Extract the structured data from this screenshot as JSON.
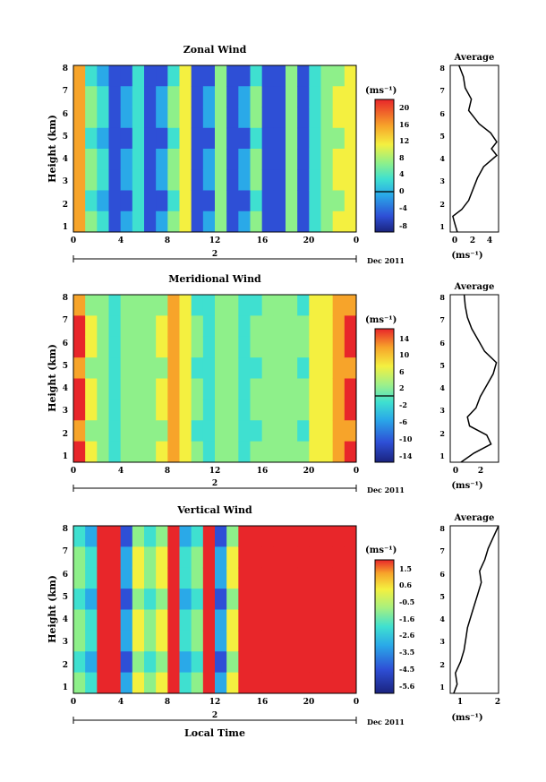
{
  "panels": [
    {
      "id": "zonal",
      "title": "Zonal Wind",
      "ylabel": "Height (km)",
      "yticks": [
        "1",
        "2",
        "3",
        "4",
        "5",
        "6",
        "7",
        "8"
      ],
      "xticks": [
        "0",
        "4",
        "8",
        "12",
        "16",
        "20",
        "0"
      ],
      "day_label": "2",
      "date_label": "Dec 2011",
      "cbar_unit": "(ms⁻¹)",
      "cbar_ticks": [
        "20",
        "16",
        "12",
        "8",
        "4",
        "0",
        "-4",
        "-8"
      ],
      "avg_title": "Average",
      "avg_xticks": [
        "0",
        "2",
        "4"
      ],
      "avg_xlabel": "(ms⁻¹)"
    },
    {
      "id": "meridional",
      "title": "Meridional Wind",
      "ylabel": "Height (km)",
      "yticks": [
        "1",
        "2",
        "3",
        "4",
        "5",
        "6",
        "7",
        "8"
      ],
      "xticks": [
        "0",
        "4",
        "8",
        "12",
        "16",
        "20",
        "0"
      ],
      "day_label": "2",
      "date_label": "Dec 2011",
      "cbar_unit": "(ms⁻¹)",
      "cbar_ticks": [
        "14",
        "10",
        "6",
        "2",
        "-2",
        "-6",
        "-10",
        "-14"
      ],
      "avg_title": "Average",
      "avg_xticks": [
        "0",
        "2"
      ],
      "avg_xlabel": "(ms⁻¹)"
    },
    {
      "id": "vertical",
      "title": "Vertical Wind",
      "ylabel": "Height (km)",
      "yticks": [
        "1",
        "2",
        "3",
        "4",
        "5",
        "6",
        "7",
        "8"
      ],
      "xticks": [
        "0",
        "4",
        "8",
        "12",
        "16",
        "20",
        "0"
      ],
      "day_label": "2",
      "date_label": "Dec 2011",
      "cbar_unit": "(ms⁻¹)",
      "cbar_ticks": [
        "1.5",
        "0.6",
        "-0.5",
        "-1.6",
        "-2.6",
        "-3.5",
        "-4.5",
        "-5.6"
      ],
      "avg_title": "Average",
      "avg_xticks": [
        "1",
        "2"
      ],
      "avg_xlabel": "(ms⁻¹)"
    }
  ],
  "xlabel": "Local Time",
  "chart_data": [
    {
      "type": "heatmap",
      "title": "Zonal Wind",
      "xlabel": "",
      "ylabel": "Height (km)",
      "xlim_hours": [
        0,
        24
      ],
      "ylim": [
        0.6,
        8
      ],
      "colorbar": {
        "label": "(ms⁻¹)",
        "range": [
          -10,
          22
        ],
        "contour": 0
      },
      "x_hours": [
        0.5,
        1.5,
        2.5,
        3.5,
        4.5,
        5.5,
        6.5,
        7.5,
        8.5,
        9.5,
        10.5,
        11.5,
        12.5,
        13.5,
        14.5,
        15.5,
        16.5,
        17.5,
        18.5,
        19.5,
        20.5,
        21.5,
        22.5,
        23.5
      ],
      "column_values": [
        16,
        6,
        2,
        -3,
        -2,
        4,
        -3,
        -2,
        6,
        12,
        -4,
        -2,
        8,
        -3,
        -2,
        6,
        -3,
        -4,
        7,
        -3,
        4,
        8,
        10,
        12
      ],
      "average_profile": {
        "xlim": [
          -0.5,
          5
        ],
        "xticks": [
          0,
          2,
          4
        ],
        "height_km": [
          0.6,
          1.0,
          1.3,
          1.6,
          2.0,
          2.5,
          3.0,
          3.5,
          4.0,
          4.3,
          4.6,
          5.0,
          5.4,
          6.0,
          6.5,
          7.0,
          7.5,
          8.0
        ],
        "values": [
          0.3,
          0.0,
          -0.2,
          0.8,
          1.6,
          2.1,
          2.6,
          3.3,
          4.8,
          4.2,
          4.8,
          4.1,
          2.8,
          1.6,
          1.9,
          1.2,
          1.0,
          0.5
        ]
      }
    },
    {
      "type": "heatmap",
      "title": "Meridional Wind",
      "xlabel": "",
      "ylabel": "Height (km)",
      "xlim_hours": [
        0,
        24
      ],
      "ylim": [
        0.6,
        8
      ],
      "colorbar": {
        "label": "(ms⁻¹)",
        "range": [
          -16,
          16
        ],
        "contour": 0
      },
      "x_hours": [
        0.5,
        1.5,
        2.5,
        3.5,
        4.5,
        5.5,
        6.5,
        7.5,
        8.5,
        9.5,
        10.5,
        11.5,
        12.5,
        13.5,
        14.5,
        15.5,
        16.5,
        17.5,
        18.5,
        19.5,
        20.5,
        21.5,
        22.5,
        23.5
      ],
      "column_values": [
        12,
        4,
        2,
        -1,
        3,
        2,
        1,
        4,
        10,
        6,
        0,
        -2,
        1,
        2,
        -1,
        0,
        1,
        3,
        2,
        0,
        5,
        6,
        10,
        12
      ],
      "average_profile": {
        "xlim": [
          -1,
          3.5
        ],
        "xticks": [
          0,
          2
        ],
        "height_km": [
          0.6,
          1.0,
          1.4,
          1.8,
          2.2,
          2.6,
          3.0,
          3.5,
          4.0,
          4.5,
          5.0,
          5.5,
          6.0,
          6.5,
          7.0,
          7.5,
          8.0
        ],
        "values": [
          0.0,
          1.2,
          2.8,
          2.4,
          0.8,
          0.6,
          1.4,
          1.8,
          2.4,
          3.0,
          3.3,
          2.2,
          1.6,
          1.0,
          0.6,
          0.4,
          0.3
        ]
      }
    },
    {
      "type": "heatmap",
      "title": "Vertical Wind",
      "xlabel": "Local Time",
      "ylabel": "Height (km)",
      "xlim_hours": [
        0,
        24
      ],
      "ylim": [
        0.6,
        8
      ],
      "colorbar": {
        "label": "(ms⁻¹)",
        "range": [
          -6,
          2
        ]
      },
      "x_hours": [
        0.5,
        1.5,
        2.5,
        3.5,
        4.5,
        5.5,
        6.5,
        7.5,
        8.5,
        9.5,
        10.5,
        11.5,
        12.5,
        13.5,
        14.5,
        15.5,
        16.5,
        17.5,
        18.5,
        19.5,
        20.5,
        21.5,
        22.5,
        23.5
      ],
      "column_values": [
        -2,
        -3,
        1.8,
        1.8,
        -4,
        -1,
        -2,
        -1,
        1.8,
        -3,
        -2,
        1.8,
        -4,
        -1,
        1.8,
        1.8,
        1.8,
        1.8,
        1.8,
        1.8,
        1.8,
        1.8,
        1.8,
        1.8
      ],
      "average_profile": {
        "xlim": [
          0.6,
          2
        ],
        "xticks": [
          1,
          2
        ],
        "height_km": [
          0.6,
          1.0,
          1.5,
          2.0,
          2.5,
          3.0,
          3.5,
          4.0,
          4.5,
          5.0,
          5.5,
          6.0,
          6.5,
          7.0,
          7.5,
          8.0
        ],
        "values": [
          0.7,
          0.8,
          0.75,
          0.9,
          1.0,
          1.05,
          1.1,
          1.2,
          1.3,
          1.4,
          1.5,
          1.45,
          1.6,
          1.7,
          1.85,
          2.0
        ]
      }
    }
  ]
}
